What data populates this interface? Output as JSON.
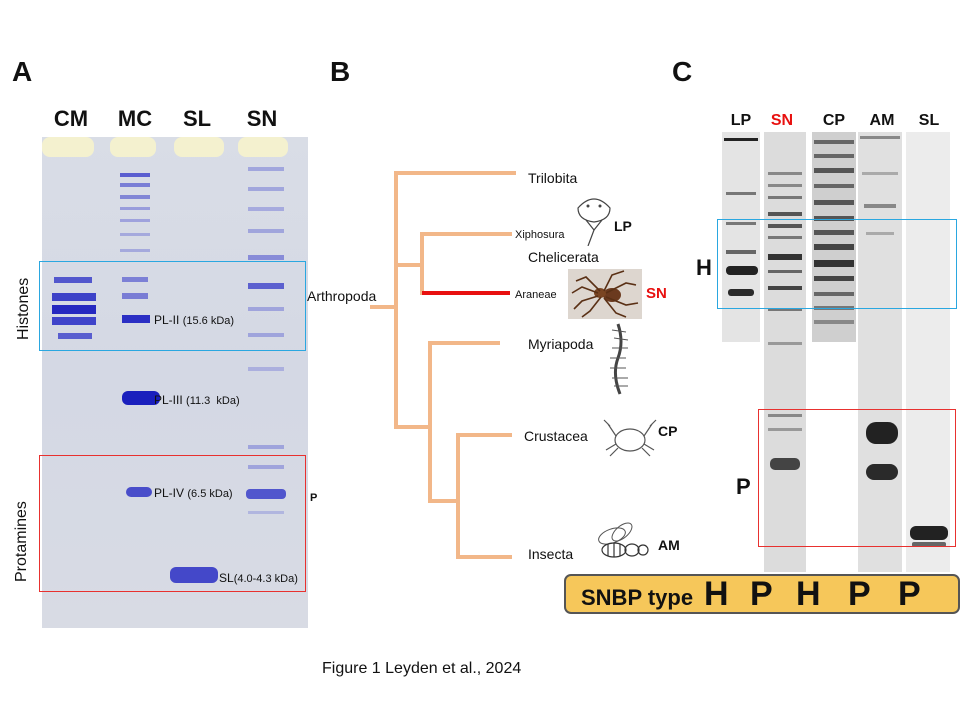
{
  "panels": {
    "a": "A",
    "b": "B",
    "c": "C"
  },
  "panel_a": {
    "lanes": [
      "CM",
      "MC",
      "SL",
      "SN"
    ],
    "boxes": {
      "histones": "Histones",
      "protamines": "Protamines"
    },
    "bands": [
      {
        "name": "PL-II",
        "mw": "(15.6 kDa)"
      },
      {
        "name": "PL-III",
        "mw": "(11.3  kDa)"
      },
      {
        "name": "PL-IV",
        "mw": "(6.5 kDa)"
      },
      {
        "name": "SL",
        "mw": "(4.0-4.3 kDa)"
      }
    ],
    "p_mark": "P"
  },
  "panel_b": {
    "root": "Arthropoda",
    "taxa": {
      "trilobita": "Trilobita",
      "xiphosura": "Xiphosura",
      "chelicerata": "Chelicerata",
      "araneae": "Araneae",
      "myriapoda": "Myriapoda",
      "crustacea": "Crustacea",
      "insecta": "Insecta"
    },
    "codes": {
      "lp": "LP",
      "sn": "SN",
      "cp": "CP",
      "am": "AM"
    },
    "colors": {
      "branch": "#f2b789",
      "highlight": "#e8100f"
    }
  },
  "panel_c": {
    "lanes": [
      "LP",
      "SN",
      "CP",
      "AM",
      "SL"
    ],
    "highlight_lane": "SN",
    "row_labels": {
      "h": "H",
      "p": "P"
    },
    "snbp": {
      "label": "SNBP type",
      "types": [
        "H",
        "P",
        "H",
        "P",
        "P"
      ]
    }
  },
  "caption": "Figure 1 Leyden et al., 2024",
  "colors": {
    "histone_box": "#2aa7e0",
    "protamine_box": "#e8312f",
    "snbp_fill": "#f6c75a"
  }
}
